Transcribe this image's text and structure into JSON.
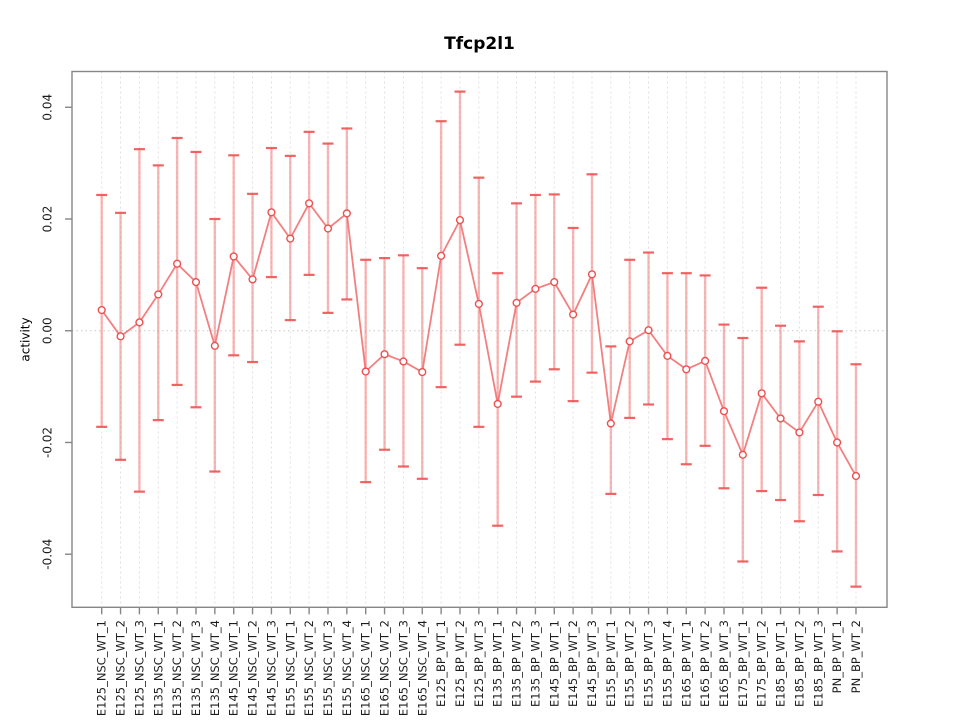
{
  "window": {
    "background": "#ffffff"
  },
  "chart_data": {
    "type": "scatter",
    "variant": "points-with-error-bars",
    "title": "Tfcp2l1",
    "xlabel": "",
    "ylabel": "activity",
    "ylim": [
      -0.0495,
      0.0464
    ],
    "yticks": {
      "values": [
        0.04,
        0.02,
        0,
        -0.02,
        -0.04
      ],
      "labels": [
        "0.04",
        "0.02",
        "0.00",
        "-0.02",
        "-0.04"
      ]
    },
    "grid": {
      "vertical_dashed_line_per_category": true,
      "horizontal_dotted_zero_line": true
    },
    "legend": "none",
    "categories": [
      "E125_NSC_WT_1",
      "E125_NSC_WT_2",
      "E125_NSC_WT_3",
      "E135_NSC_WT_1",
      "E135_NSC_WT_2",
      "E135_NSC_WT_3",
      "E135_NSC_WT_4",
      "E145_NSC_WT_1",
      "E145_NSC_WT_2",
      "E145_NSC_WT_3",
      "E155_NSC_WT_1",
      "E155_NSC_WT_2",
      "E155_NSC_WT_3",
      "E155_NSC_WT_4",
      "E165_NSC_WT_1",
      "E165_NSC_WT_2",
      "E165_NSC_WT_3",
      "E165_NSC_WT_4",
      "E125_BP_WT_1",
      "E125_BP_WT_2",
      "E125_BP_WT_3",
      "E135_BP_WT_1",
      "E135_BP_WT_2",
      "E135_BP_WT_3",
      "E145_BP_WT_1",
      "E145_BP_WT_2",
      "E145_BP_WT_3",
      "E155_BP_WT_1",
      "E155_BP_WT_2",
      "E155_BP_WT_3",
      "E155_BP_WT_4",
      "E165_BP_WT_1",
      "E165_BP_WT_2",
      "E165_BP_WT_3",
      "E175_BP_WT_1",
      "E175_BP_WT_2",
      "E185_BP_WT_1",
      "E185_BP_WT_2",
      "E185_BP_WT_3",
      "PN_BP_WT_1",
      "PN_BP_WT_2"
    ],
    "series": [
      {
        "name": "activity",
        "values": [
          0.0037,
          -0.001,
          0.0015,
          0.0065,
          0.012,
          0.0087,
          -0.0027,
          0.0133,
          0.0092,
          0.0212,
          0.0165,
          0.0228,
          0.0183,
          0.021,
          -0.0073,
          -0.0042,
          -0.0055,
          -0.0074,
          0.0134,
          0.0198,
          0.0048,
          -0.0131,
          0.005,
          0.0075,
          0.0087,
          0.0029,
          0.0101,
          -0.0166,
          -0.0019,
          0.0001,
          -0.0045,
          -0.0069,
          -0.0054,
          -0.0144,
          -0.0222,
          -0.0112,
          -0.0157,
          -0.0182,
          -0.0127,
          -0.02,
          -0.026
        ],
        "lower": [
          -0.0172,
          -0.0231,
          -0.0288,
          -0.016,
          -0.0097,
          -0.0137,
          -0.0252,
          -0.0044,
          -0.0056,
          0.0096,
          0.0019,
          0.01,
          0.0032,
          0.0056,
          -0.0271,
          -0.0213,
          -0.0243,
          -0.0265,
          -0.0101,
          -0.0025,
          -0.0172,
          -0.0349,
          -0.0118,
          -0.0091,
          -0.0069,
          -0.0126,
          -0.0075,
          -0.0292,
          -0.0156,
          -0.0132,
          -0.0194,
          -0.0239,
          -0.0206,
          -0.0282,
          -0.0413,
          -0.0287,
          -0.0303,
          -0.0341,
          -0.0294,
          -0.0395,
          -0.0458
        ],
        "upper": [
          0.0243,
          0.0211,
          0.0325,
          0.0296,
          0.0345,
          0.032,
          0.02,
          0.0314,
          0.0245,
          0.0327,
          0.0313,
          0.0356,
          0.0335,
          0.0362,
          0.0127,
          0.013,
          0.0135,
          0.0112,
          0.0375,
          0.0428,
          0.0274,
          0.0103,
          0.0228,
          0.0243,
          0.0244,
          0.0184,
          0.028,
          -0.0028,
          0.0127,
          0.014,
          0.0103,
          0.0103,
          0.0099,
          0.0011,
          -0.0013,
          0.0077,
          0.0009,
          -0.0019,
          0.0043,
          -0.0001,
          -0.006
        ]
      }
    ],
    "colors": {
      "point": "#ee4f4f",
      "line": "#f06a6a",
      "error_bar": "#f37b7b",
      "error_cap": "#ef5252",
      "grid": "#e0e0e0",
      "zero_line": "#c8c8c8",
      "axis_box": "#868686",
      "text": "#1c1c1c"
    }
  }
}
